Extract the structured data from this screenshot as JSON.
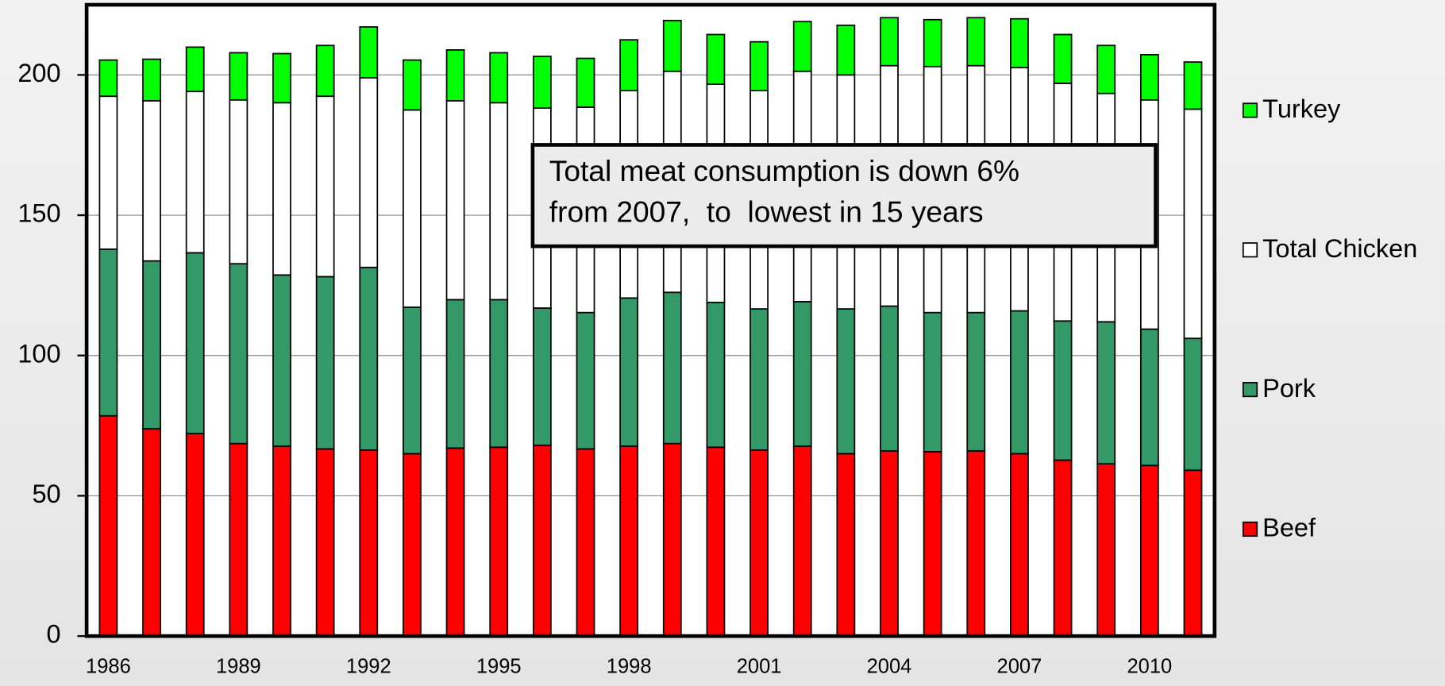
{
  "chart_data": {
    "type": "stacked_bar",
    "categories": [
      "1986",
      null,
      null,
      "1989",
      null,
      null,
      "1992",
      null,
      null,
      "1995",
      null,
      null,
      "1998",
      null,
      null,
      "2001",
      null,
      null,
      "2004",
      null,
      null,
      "2007",
      null,
      null,
      "2010",
      null
    ],
    "series": [
      {
        "name": "Beef",
        "color": "#ff0000",
        "values": [
          78.5,
          73.9,
          72.2,
          68.6,
          67.7,
          66.7,
          66.3,
          65.0,
          67.0,
          67.3,
          68.0,
          66.7,
          67.7,
          68.6,
          67.3,
          66.3,
          67.7,
          65.0,
          66.0,
          65.7,
          66.0,
          65.0,
          62.7,
          61.4,
          60.8,
          59.1
        ]
      },
      {
        "name": "Pork",
        "color": "#339966",
        "values": [
          59.4,
          59.8,
          64.4,
          64.1,
          61.0,
          61.4,
          65.1,
          52.2,
          52.9,
          52.6,
          48.9,
          48.6,
          52.8,
          53.9,
          51.6,
          50.3,
          51.5,
          51.6,
          51.6,
          49.6,
          49.3,
          50.9,
          49.6,
          50.6,
          48.6,
          47.0
        ]
      },
      {
        "name": "Total Chicken",
        "color": "#ffffff",
        "values": [
          54.5,
          57.1,
          57.5,
          58.4,
          61.4,
          64.3,
          67.6,
          70.3,
          70.9,
          70.2,
          71.3,
          73.2,
          73.9,
          78.8,
          77.8,
          77.8,
          82.1,
          83.4,
          85.7,
          87.7,
          88.0,
          86.7,
          84.7,
          81.4,
          81.7,
          81.7
        ]
      },
      {
        "name": "Turkey",
        "color": "#00ff00",
        "values": [
          12.9,
          14.8,
          15.8,
          16.8,
          17.5,
          18.1,
          18.1,
          17.8,
          18.1,
          17.8,
          18.4,
          17.4,
          18.1,
          18.1,
          17.7,
          17.4,
          17.7,
          17.7,
          17.1,
          16.7,
          17.1,
          17.4,
          17.4,
          17.1,
          16.1,
          16.8
        ]
      }
    ],
    "ylim": [
      0,
      225
    ],
    "yticks": [
      0,
      50,
      100,
      150,
      200
    ],
    "grid": true,
    "annotation": [
      "Total meat consumption is down 6%",
      "from 2007,  to  lowest in 15 years"
    ]
  }
}
